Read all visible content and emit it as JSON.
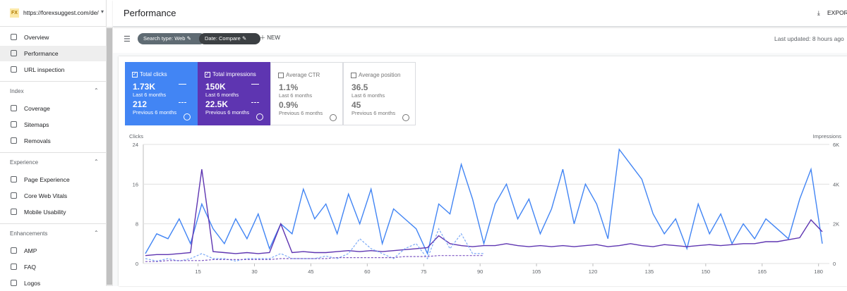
{
  "header": {
    "logo": "FX",
    "site": "https://forexsuggest.com/de/",
    "title": "Performance",
    "export": "EXPORT"
  },
  "sidebar": {
    "top": [
      "Overview",
      "Performance",
      "URL inspection"
    ],
    "sections": [
      {
        "title": "Index",
        "items": [
          "Coverage",
          "Sitemaps",
          "Removals"
        ]
      },
      {
        "title": "Experience",
        "items": [
          "Page Experience",
          "Core Web Vitals",
          "Mobile Usability"
        ]
      },
      {
        "title": "Enhancements",
        "items": [
          "AMP",
          "FAQ",
          "Logos"
        ]
      }
    ]
  },
  "filters": {
    "chips": [
      "Search type: Web",
      "Date: Compare"
    ],
    "new": "NEW",
    "updated": "Last updated: 8 hours ago"
  },
  "cards": [
    {
      "label": "Total clicks",
      "current": "1.73K",
      "current_period": "Last 6 months",
      "previous": "212",
      "previous_period": "Previous 6 months"
    },
    {
      "label": "Total impressions",
      "current": "150K",
      "current_period": "Last 6 months",
      "previous": "22.5K",
      "previous_period": "Previous 6 months"
    },
    {
      "label": "Average CTR",
      "current": "1.1%",
      "current_period": "Last 6 months",
      "previous": "0.9%",
      "previous_period": "Previous 6 months"
    },
    {
      "label": "Average position",
      "current": "36.5",
      "current_period": "Last 6 months",
      "previous": "45",
      "previous_period": "Previous 6 months"
    }
  ],
  "chart_data": {
    "type": "line",
    "y_label": "Clicks",
    "y2_label": "Impressions",
    "grid": true,
    "xlim": [
      1,
      181
    ],
    "xticks": [
      15,
      30,
      45,
      60,
      75,
      90,
      105,
      120,
      135,
      150,
      165,
      180
    ],
    "ylim": [
      0,
      24
    ],
    "yticks": [
      0,
      8,
      16,
      24
    ],
    "y2lim": [
      0,
      6000
    ],
    "y2ticks": [
      0,
      {
        "value": 2000,
        "label": "2K"
      },
      {
        "value": 4000,
        "label": "4K"
      },
      {
        "value": 6000,
        "label": "6K"
      }
    ],
    "x": [
      1,
      4,
      7,
      10,
      13,
      16,
      19,
      22,
      25,
      28,
      31,
      34,
      37,
      40,
      43,
      46,
      49,
      52,
      55,
      58,
      61,
      64,
      67,
      70,
      73,
      76,
      79,
      82,
      85,
      88,
      91,
      94,
      97,
      100,
      103,
      106,
      109,
      112,
      115,
      118,
      121,
      124,
      127,
      130,
      133,
      136,
      139,
      142,
      145,
      148,
      151,
      154,
      157,
      160,
      163,
      166,
      169,
      172,
      175,
      178,
      181
    ],
    "series": [
      {
        "color": "#4285f4",
        "dash": false,
        "axis": "y",
        "values": [
          2,
          6,
          5,
          9,
          4,
          12,
          7,
          4,
          9,
          5,
          10,
          3,
          8,
          6,
          15,
          9,
          12,
          6,
          14,
          8,
          15,
          4,
          11,
          9,
          7,
          2,
          12,
          10,
          20,
          13,
          4,
          12,
          16,
          9,
          13,
          6,
          11,
          19,
          8,
          16,
          12,
          5,
          23,
          20,
          17,
          10,
          6,
          9,
          3,
          12,
          6,
          10,
          4,
          8,
          5,
          9,
          7,
          5,
          13,
          19,
          4
        ]
      },
      {
        "color": "#5e35b1",
        "dash": false,
        "axis": "y2",
        "values": [
          400,
          450,
          450,
          500,
          550,
          4750,
          600,
          550,
          500,
          550,
          500,
          550,
          2000,
          550,
          600,
          550,
          550,
          600,
          650,
          600,
          650,
          600,
          650,
          700,
          750,
          800,
          1400,
          1000,
          900,
          850,
          900,
          900,
          1000,
          900,
          850,
          900,
          850,
          900,
          850,
          900,
          950,
          850,
          900,
          1000,
          900,
          850,
          950,
          900,
          850,
          900,
          950,
          900,
          950,
          1000,
          1000,
          1100,
          1100,
          1200,
          1300,
          2200,
          1600
        ]
      },
      {
        "color": "#7baaf7",
        "dash": true,
        "axis": "y",
        "values": [
          1,
          0.5,
          1,
          0.5,
          1,
          2,
          1,
          1,
          0.5,
          1,
          1,
          1,
          2,
          1,
          1,
          1,
          1.5,
          1,
          2,
          5,
          3,
          2,
          1,
          3,
          4,
          1,
          7,
          3,
          6,
          2,
          2,
          null,
          null,
          null,
          null,
          null,
          null,
          null,
          null,
          null,
          null,
          null,
          null,
          null,
          null,
          null,
          null,
          null,
          null,
          null,
          null,
          null,
          null,
          null,
          null,
          null,
          null,
          null,
          null,
          null,
          null
        ]
      },
      {
        "color": "#7e57c2",
        "dash": true,
        "axis": "y2",
        "values": [
          100,
          100,
          150,
          150,
          150,
          150,
          200,
          200,
          200,
          200,
          200,
          200,
          250,
          250,
          250,
          250,
          250,
          300,
          300,
          300,
          300,
          300,
          300,
          350,
          350,
          350,
          400,
          400,
          400,
          400,
          400,
          null,
          null,
          null,
          null,
          null,
          null,
          null,
          null,
          null,
          null,
          null,
          null,
          null,
          null,
          null,
          null,
          null,
          null,
          null,
          null,
          null,
          null,
          null,
          null,
          null,
          null,
          null,
          null,
          null,
          null
        ]
      }
    ]
  }
}
